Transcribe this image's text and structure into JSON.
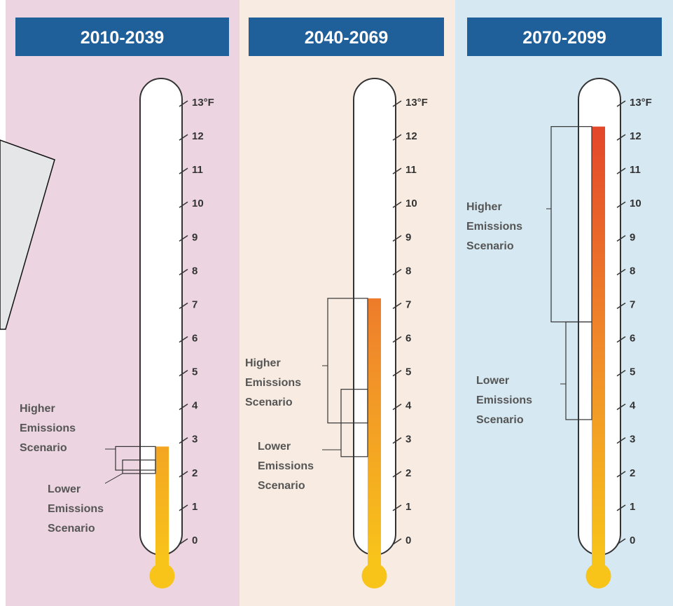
{
  "chart_data": [
    {
      "type": "thermometer",
      "title": "2010-2039",
      "ylim": [
        0,
        13
      ],
      "yticks": [
        0,
        1,
        2,
        3,
        4,
        5,
        6,
        7,
        8,
        9,
        10,
        11,
        12,
        {
          "value": 13,
          "label": "13°F"
        }
      ],
      "ranges": [
        {
          "name": "Higher Emissions Scenario",
          "low": 2.1,
          "high": 2.8
        },
        {
          "name": "Lower Emissions Scenario",
          "low": 2.0,
          "high": 2.4
        }
      ]
    },
    {
      "type": "thermometer",
      "title": "2040-2069",
      "ylim": [
        0,
        13
      ],
      "yticks": [
        0,
        1,
        2,
        3,
        4,
        5,
        6,
        7,
        8,
        9,
        10,
        11,
        12,
        {
          "value": 13,
          "label": "13°F"
        }
      ],
      "ranges": [
        {
          "name": "Higher Emissions Scenario",
          "low": 3.5,
          "high": 7.2
        },
        {
          "name": "Lower Emissions Scenario",
          "low": 2.5,
          "high": 4.5
        }
      ]
    },
    {
      "type": "thermometer",
      "title": "2070-2099",
      "ylim": [
        0,
        13
      ],
      "yticks": [
        0,
        1,
        2,
        3,
        4,
        5,
        6,
        7,
        8,
        9,
        10,
        11,
        12,
        {
          "value": 13,
          "label": "13°F"
        }
      ],
      "ranges": [
        {
          "name": "Higher Emissions Scenario",
          "low": 6.5,
          "high": 12.3
        },
        {
          "name": "Lower Emissions Scenario",
          "low": 3.6,
          "high": 6.5
        }
      ]
    }
  ]
}
